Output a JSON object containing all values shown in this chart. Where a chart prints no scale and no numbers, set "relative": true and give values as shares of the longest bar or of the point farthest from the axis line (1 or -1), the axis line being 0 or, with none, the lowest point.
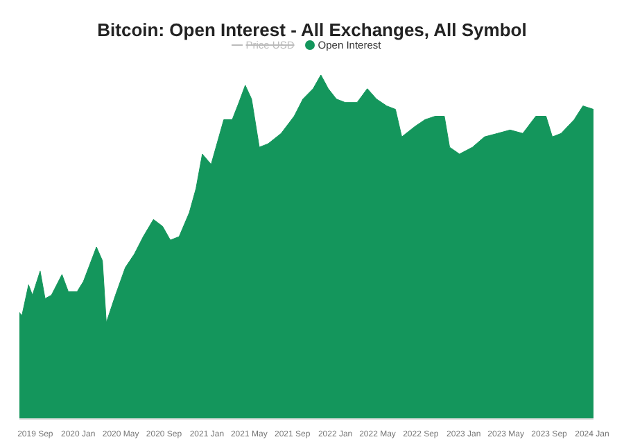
{
  "chart_data": {
    "type": "area",
    "title": "Bitcoin: Open Interest - All Exchanges, All Symbol",
    "relative": true,
    "x": [
      "2019-07-18",
      "2019-07-25",
      "2019-08-13",
      "2019-08-24",
      "2019-09-15",
      "2019-09-29",
      "2019-10-17",
      "2019-11-16",
      "2019-12-04",
      "2019-12-29",
      "2020-01-16",
      "2020-02-22",
      "2020-03-10",
      "2020-03-21",
      "2020-04-16",
      "2020-05-14",
      "2020-06-09",
      "2020-07-04",
      "2020-08-02",
      "2020-08-28",
      "2020-09-19",
      "2020-10-14",
      "2020-11-12",
      "2020-12-01",
      "2020-12-19",
      "2021-01-13",
      "2021-02-18",
      "2021-03-14",
      "2021-04-02",
      "2021-04-20",
      "2021-05-08",
      "2021-05-30",
      "2021-06-24",
      "2021-07-31",
      "2021-09-06",
      "2021-10-01",
      "2021-10-30",
      "2021-11-21",
      "2021-12-12",
      "2022-01-04",
      "2022-01-29",
      "2022-03-04",
      "2022-04-02",
      "2022-04-28",
      "2022-05-27",
      "2022-06-21",
      "2022-07-09",
      "2022-08-15",
      "2022-09-13",
      "2022-10-12",
      "2022-11-07",
      "2022-11-22",
      "2022-12-20",
      "2023-01-26",
      "2023-03-01",
      "2023-04-07",
      "2023-05-13",
      "2023-06-18",
      "2023-07-25",
      "2023-08-23",
      "2023-09-10",
      "2023-10-05",
      "2023-11-11",
      "2023-12-06",
      "2024-01-05"
    ],
    "series": [
      {
        "name": "Price USD",
        "type": "line",
        "color": "#bbbbbb",
        "values": [
          null,
          null,
          null,
          null,
          null,
          null,
          null,
          null,
          null,
          null,
          null,
          null,
          null,
          null,
          null,
          null,
          null,
          null,
          null,
          null,
          null,
          null,
          null,
          null,
          null,
          null,
          null,
          null,
          null,
          null,
          null,
          null,
          null,
          null,
          null,
          null,
          null,
          null,
          null,
          null,
          null,
          null,
          null,
          null,
          null,
          null,
          null,
          null,
          null,
          null,
          null,
          null,
          null,
          null,
          null,
          null,
          null,
          null,
          null,
          null,
          null,
          null,
          null,
          null,
          null
        ]
      },
      {
        "name": "Open Interest",
        "color": "#14965c",
        "values": [
          0.31,
          0.3,
          0.39,
          0.36,
          0.43,
          0.35,
          0.36,
          0.42,
          0.37,
          0.37,
          0.4,
          0.5,
          0.46,
          0.28,
          0.36,
          0.44,
          0.48,
          0.53,
          0.58,
          0.56,
          0.52,
          0.53,
          0.6,
          0.67,
          0.77,
          0.74,
          0.87,
          0.87,
          0.92,
          0.97,
          0.93,
          0.79,
          0.8,
          0.83,
          0.88,
          0.93,
          0.96,
          1.0,
          0.96,
          0.93,
          0.92,
          0.92,
          0.96,
          0.93,
          0.91,
          0.9,
          0.82,
          0.85,
          0.87,
          0.88,
          0.88,
          0.79,
          0.77,
          0.79,
          0.82,
          0.83,
          0.84,
          0.83,
          0.88,
          0.88,
          0.82,
          0.83,
          0.87,
          0.91,
          0.9
        ]
      }
    ],
    "xlim": [
      "2019-07-18",
      "2024-01-05"
    ],
    "xticks": [
      {
        "value": "2019-09",
        "label": "2019 Sep"
      },
      {
        "value": "2020-01",
        "label": "2020 Jan"
      },
      {
        "value": "2020-05",
        "label": "2020 May"
      },
      {
        "value": "2020-09",
        "label": "2020 Sep"
      },
      {
        "value": "2021-01",
        "label": "2021 Jan"
      },
      {
        "value": "2021-05",
        "label": "2021 May"
      },
      {
        "value": "2021-09",
        "label": "2021 Sep"
      },
      {
        "value": "2022-01",
        "label": "2022 Jan"
      },
      {
        "value": "2022-05",
        "label": "2022 May"
      },
      {
        "value": "2022-09",
        "label": "2022 Sep"
      },
      {
        "value": "2023-01",
        "label": "2023 Jan"
      },
      {
        "value": "2023-05",
        "label": "2023 May"
      },
      {
        "value": "2023-09",
        "label": "2023 Sep"
      },
      {
        "value": "2024-01",
        "label": "2024 Jan"
      }
    ],
    "legend": "top"
  }
}
